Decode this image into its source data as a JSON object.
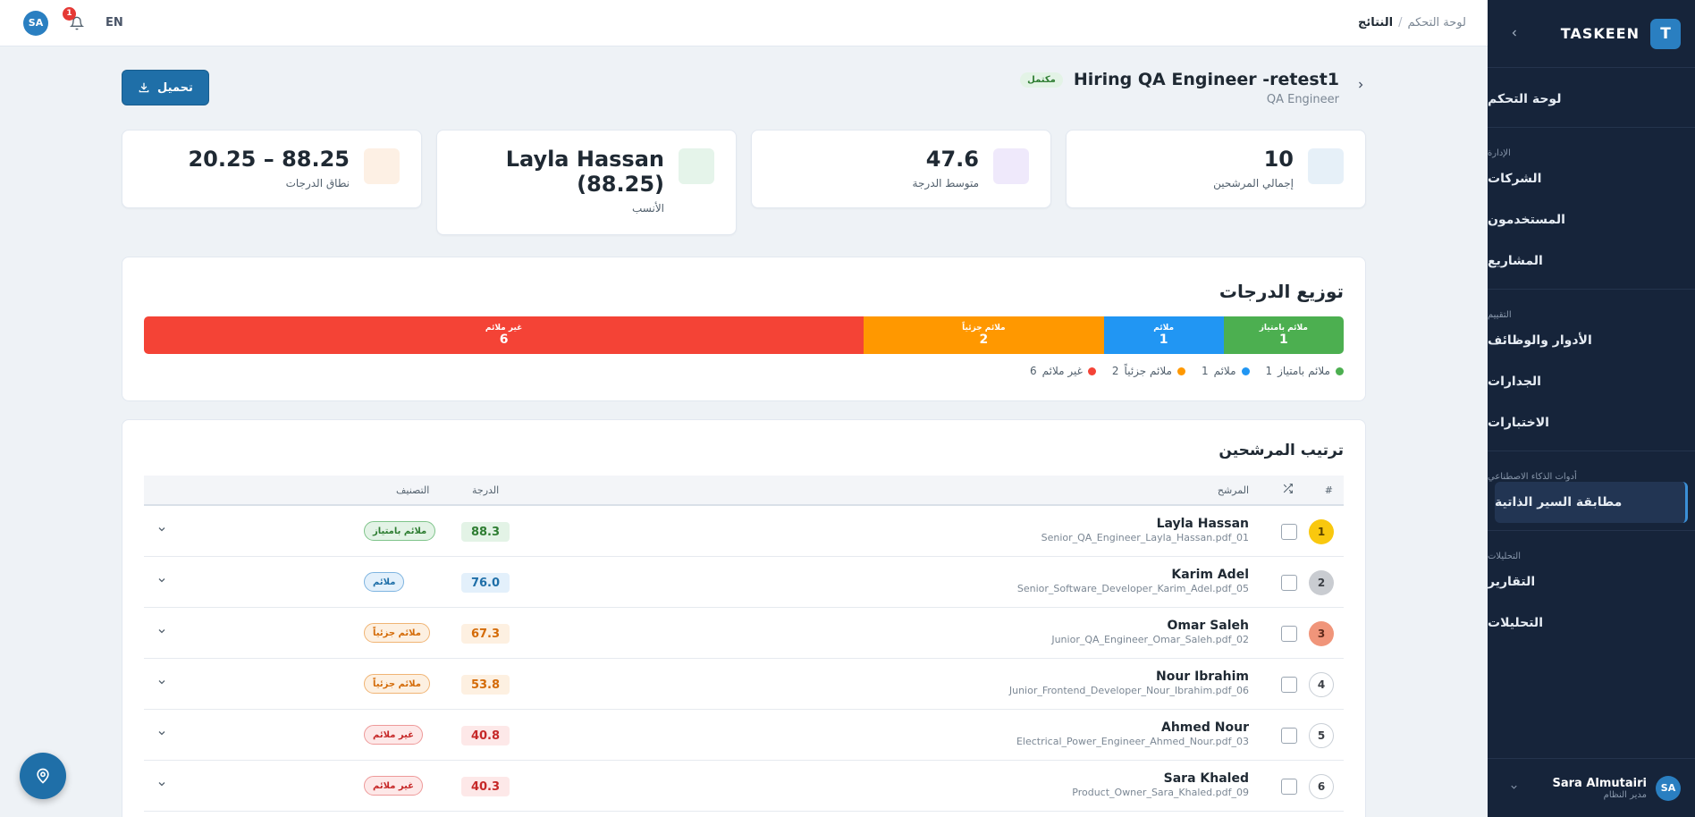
{
  "sidebar": {
    "logo_text": "TASKEEN",
    "logo_letter": "T",
    "dashboard": "لوحة التحكم",
    "sections": {
      "admin": "الإدارة",
      "eval": "التقييم",
      "ai": "أدوات الذكاء الاصطناعي",
      "analytics": "التحليلات"
    },
    "items": {
      "companies": "الشركات",
      "users": "المستخدمون",
      "projects": "المشاريع",
      "roles": "الأدوار والوظائف",
      "competencies": "الجدارات",
      "tests": "الاختبارات",
      "cv_matching": "مطابقة السير الذاتية",
      "reports": "التقارير",
      "analytics": "التحليلات"
    },
    "user": {
      "initials": "SA",
      "name": "Sara Almutairi",
      "role": "مدير النظام"
    }
  },
  "topbar": {
    "avatar": "SA",
    "notifications": "1",
    "lang": "EN",
    "breadcrumb_root": "لوحة التحكم",
    "breadcrumb_sep": "/",
    "breadcrumb_current": "النتائج"
  },
  "header": {
    "title": "Hiring QA Engineer -retest1",
    "subtitle": "QA Engineer",
    "status": "مكتمل",
    "download": "تحميل"
  },
  "stats": [
    {
      "value": "10",
      "label": "إجمالي المرشحين",
      "color": "#e6f0f8"
    },
    {
      "value": "47.6",
      "label": "متوسط الدرجة",
      "color": "#efe9fb"
    },
    {
      "value": "Layla Hassan (88.25)",
      "label": "الأنسب",
      "color": "#e5f4ea"
    },
    {
      "value": "20.25 – 88.25",
      "label": "نطاق الدرجات",
      "color": "#fdf0e4"
    }
  ],
  "distribution": {
    "title": "توزيع الدرجات",
    "segments": [
      {
        "label": "ملائم بامتياز",
        "count": "1",
        "color": "#4caf50"
      },
      {
        "label": "ملائم",
        "count": "1",
        "color": "#2196f3"
      },
      {
        "label": "ملائم جزئياً",
        "count": "2",
        "color": "#ff9800"
      },
      {
        "label": "غير ملائم",
        "count": "6",
        "color": "#f44336"
      }
    ]
  },
  "ranking": {
    "title": "ترتيب المرشحين",
    "headers": {
      "rank": "#",
      "candidate": "المرشح",
      "score": "الدرجة",
      "classification": "التصنيف"
    },
    "rows": [
      {
        "rank": "1",
        "name": "Layla Hassan",
        "file": "Senior_QA_Engineer_Layla_Hassan.pdf_01",
        "score": "88.3",
        "class": "ملائم بامتياز",
        "tone": "green",
        "medal": "gold"
      },
      {
        "rank": "2",
        "name": "Karim Adel",
        "file": "Senior_Software_Developer_Karim_Adel.pdf_05",
        "score": "76.0",
        "class": "ملائم",
        "tone": "blue",
        "medal": "silver"
      },
      {
        "rank": "3",
        "name": "Omar Saleh",
        "file": "Junior_QA_Engineer_Omar_Saleh.pdf_02",
        "score": "67.3",
        "class": "ملائم جزئياً",
        "tone": "orange",
        "medal": "bronze"
      },
      {
        "rank": "4",
        "name": "Nour Ibrahim",
        "file": "Junior_Frontend_Developer_Nour_Ibrahim.pdf_06",
        "score": "53.8",
        "class": "ملائم جزئياً",
        "tone": "orange",
        "medal": "none"
      },
      {
        "rank": "5",
        "name": "Ahmed Nour",
        "file": "Electrical_Power_Engineer_Ahmed_Nour.pdf_03",
        "score": "40.8",
        "class": "غير ملائم",
        "tone": "red",
        "medal": "none"
      },
      {
        "rank": "6",
        "name": "Sara Khaled",
        "file": "Product_Owner_Sara_Khaled.pdf_09",
        "score": "40.3",
        "class": "غير ملائم",
        "tone": "red",
        "medal": "none"
      }
    ]
  }
}
